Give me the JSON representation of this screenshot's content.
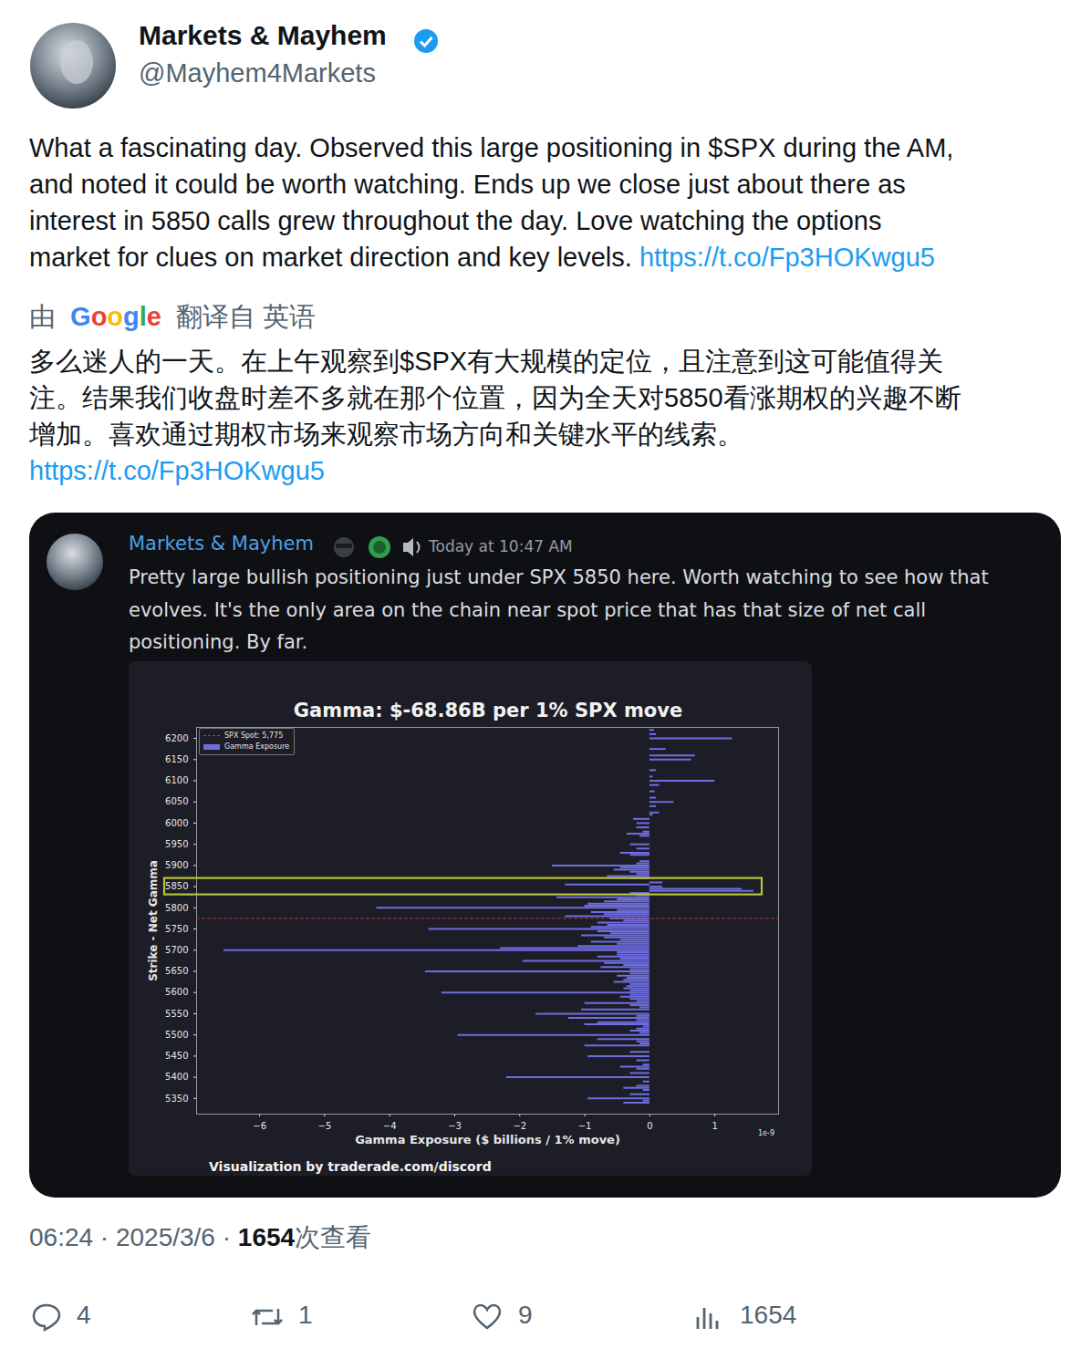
{
  "tweet": {
    "author": {
      "name": "Markets & Mayhem",
      "handle": "@Mayhem4Markets"
    },
    "text_lines": [
      "What a fascinating day. Observed this large positioning in $SPX during the AM,",
      "and noted it could be worth watching. Ends up we close just about there as",
      "interest in 5850 calls grew throughout the day. Love watching the options",
      "market for clues on market direction and key levels."
    ],
    "link": "https://t.co/Fp3HOKwgu5",
    "translation": {
      "prefix": "由",
      "service": "Google",
      "suffix": "翻译自 英语",
      "text_lines": [
        "多么迷人的一天。在上午观察到$SPX有大规模的定位，且注意到这可能值得关",
        "注。结果我们收盘时差不多就在那个位置，因为全天对5850看涨期权的兴趣不断",
        "增加。喜欢通过期权市场来观察市场方向和关键水平的线索。"
      ],
      "link": "https://t.co/Fp3HOKwgu5"
    },
    "timestamp": "06:24 · 2025/3/6",
    "separator": " · ",
    "views": 1654,
    "views_suffix": "次查看",
    "stats": {
      "replies": 4,
      "retweets": 1,
      "likes": 9,
      "views": 1654
    }
  },
  "embed": {
    "author": "Markets & Mayhem",
    "time": "Today at 10:47 AM",
    "message_lines": [
      "Pretty large bullish positioning just under SPX 5850 here. Worth watching to see how that",
      "evolves. It's the only area on the chain near spot price that has that size of net call",
      "positioning. By far."
    ],
    "caption": "Visualization by traderade.com/discord"
  },
  "chart_data": {
    "type": "bar",
    "orientation": "horizontal",
    "title": "Gamma: $-68.86B per 1% SPX move",
    "x_label": "Gamma Exposure ($ billions / 1% move)",
    "y_label": "Strike - Net Gamma",
    "x_offset_text": "1e-9",
    "name": "Gamma Exposure",
    "color": "#6e6ee0",
    "y": [
      5340,
      5345,
      5350,
      5360,
      5370,
      5375,
      5380,
      5390,
      5400,
      5410,
      5420,
      5425,
      5430,
      5440,
      5450,
      5460,
      5475,
      5480,
      5485,
      5490,
      5500,
      5505,
      5510,
      5515,
      5520,
      5525,
      5530,
      5535,
      5540,
      5545,
      5550,
      5560,
      5565,
      5570,
      5575,
      5580,
      5585,
      5590,
      5595,
      5600,
      5605,
      5610,
      5615,
      5620,
      5625,
      5630,
      5635,
      5640,
      5645,
      5650,
      5655,
      5660,
      5665,
      5670,
      5675,
      5680,
      5685,
      5690,
      5695,
      5700,
      5705,
      5710,
      5715,
      5720,
      5725,
      5730,
      5735,
      5740,
      5745,
      5750,
      5755,
      5760,
      5765,
      5770,
      5775,
      5780,
      5785,
      5790,
      5795,
      5800,
      5805,
      5810,
      5815,
      5820,
      5825,
      5830,
      5835,
      5840,
      5845,
      5850,
      5855,
      5860,
      5870,
      5875,
      5880,
      5885,
      5890,
      5895,
      5900,
      5905,
      5910,
      5925,
      5930,
      5940,
      5950,
      5970,
      5975,
      5980,
      5990,
      6000,
      6010,
      6020,
      6025,
      6040,
      6050,
      6060,
      6075,
      6090,
      6100,
      6110,
      6125,
      6150,
      6160,
      6175,
      6200,
      6210,
      6220
    ],
    "values": [
      -0.4,
      -0.1,
      -0.95,
      -0.3,
      -0.1,
      -0.4,
      -0.2,
      -0.1,
      -2.2,
      -0.3,
      -0.2,
      -0.45,
      -0.1,
      -0.2,
      -0.95,
      -0.3,
      -1.0,
      -0.15,
      -0.2,
      -0.8,
      -2.95,
      -0.15,
      -0.3,
      -0.2,
      -0.1,
      -1.0,
      -0.8,
      -0.2,
      -1.25,
      -0.2,
      -1.75,
      -1.05,
      -0.15,
      -0.3,
      -1.0,
      -0.2,
      -0.3,
      -0.45,
      -0.3,
      -3.2,
      -0.3,
      -0.4,
      -0.35,
      -0.3,
      -0.55,
      -0.4,
      -0.35,
      -0.5,
      -0.3,
      -3.45,
      -0.3,
      -0.75,
      -0.4,
      -0.7,
      -1.95,
      -0.45,
      -0.8,
      -0.5,
      -0.5,
      -6.55,
      -2.3,
      -1.1,
      -0.5,
      -0.9,
      -0.45,
      -0.7,
      -1.05,
      -0.6,
      -0.8,
      -3.4,
      -0.9,
      -0.65,
      -0.8,
      -0.4,
      -0.6,
      -1.3,
      -0.7,
      -0.9,
      -0.5,
      -4.2,
      -1.0,
      -0.95,
      -0.7,
      -0.5,
      -1.43,
      -0.2,
      -0.3,
      1.6,
      1.42,
      0.2,
      -1.3,
      0.2,
      -0.3,
      -0.65,
      -0.2,
      -0.3,
      -0.55,
      -0.45,
      -1.5,
      -0.2,
      -0.15,
      -0.3,
      -0.45,
      -0.2,
      -0.3,
      -0.15,
      -0.35,
      -0.1,
      -0.2,
      -0.2,
      -0.25,
      0.05,
      0.15,
      0.1,
      0.37,
      0.1,
      0.08,
      0.15,
      1.0,
      0.05,
      0.1,
      0.64,
      0.7,
      0.25,
      1.27,
      0.1,
      0.07
    ],
    "spot": {
      "label": "SPX Spot: 5,775",
      "value": 5775,
      "color": "#c0392b",
      "line_style": "dashed"
    },
    "highlight": {
      "y": 5850,
      "color": "#b8c33a"
    },
    "xlim": [
      -6.97,
      1.98
    ],
    "xticks": [
      {
        "value": -6,
        "label": "−6"
      },
      {
        "value": -5,
        "label": "−5"
      },
      {
        "value": -4,
        "label": "−4"
      },
      {
        "value": -3,
        "label": "−3"
      },
      {
        "value": -2,
        "label": "−2"
      },
      {
        "value": -1,
        "label": "−1"
      },
      0,
      1
    ],
    "ylim": [
      5313,
      6226
    ],
    "yticks": [
      5350,
      5400,
      5450,
      5500,
      5550,
      5600,
      5650,
      5700,
      5750,
      5800,
      5850,
      5900,
      5950,
      6000,
      6050,
      6100,
      6150,
      6200
    ],
    "grid": false,
    "legend": "upper left"
  }
}
